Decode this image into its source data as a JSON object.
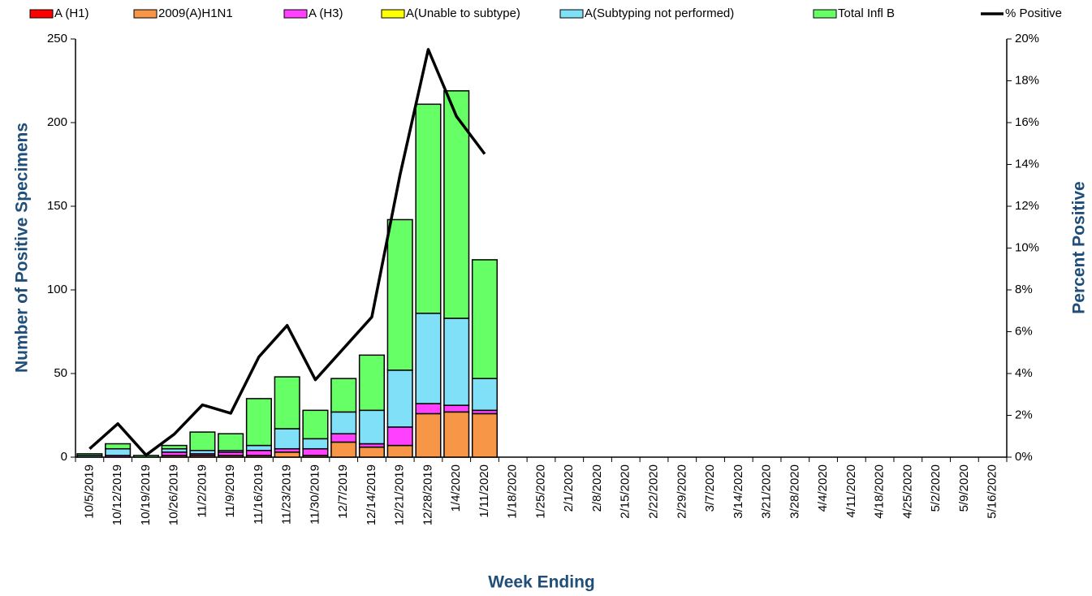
{
  "chart_data": {
    "type": "stacked-bar-line",
    "y_axis_label": "Number of  Positive Specimens",
    "y2_axis_label": "Percent Positive",
    "x_axis_label": "Week Ending",
    "categories": [
      "10/5/2019",
      "10/12/2019",
      "10/19/2019",
      "10/26/2019",
      "11/2/2019",
      "11/9/2019",
      "11/16/2019",
      "11/23/2019",
      "11/30/2019",
      "12/7/2019",
      "12/14/2019",
      "12/21/2019",
      "12/28/2019",
      "1/4/2020",
      "1/11/2020",
      "1/18/2020",
      "1/25/2020",
      "2/1/2020",
      "2/8/2020",
      "2/15/2020",
      "2/22/2020",
      "2/29/2020",
      "3/7/2020",
      "3/14/2020",
      "3/21/2020",
      "3/28/2020",
      "4/4/2020",
      "4/11/2020",
      "4/18/2020",
      "4/25/2020",
      "5/2/2020",
      "5/9/2020",
      "5/16/2020"
    ],
    "series": [
      {
        "name": "A (H1)",
        "color": "#ff0000",
        "values": [
          0,
          0,
          0,
          0,
          0,
          0,
          0,
          0,
          0,
          0,
          0,
          0,
          0,
          0,
          0,
          null,
          null,
          null,
          null,
          null,
          null,
          null,
          null,
          null,
          null,
          null,
          null,
          null,
          null,
          null,
          null,
          null,
          null
        ]
      },
      {
        "name": "2009(A)H1N1",
        "color": "#f79646",
        "values": [
          0,
          0,
          0,
          1,
          1,
          1,
          1,
          3,
          1,
          9,
          6,
          7,
          26,
          27,
          26,
          null,
          null,
          null,
          null,
          null,
          null,
          null,
          null,
          null,
          null,
          null,
          null,
          null,
          null,
          null,
          null,
          null,
          null
        ]
      },
      {
        "name": "A (H3)",
        "color": "#ff40ff",
        "values": [
          0,
          1,
          0,
          2,
          1,
          2,
          3,
          2,
          4,
          5,
          2,
          11,
          6,
          4,
          2,
          null,
          null,
          null,
          null,
          null,
          null,
          null,
          null,
          null,
          null,
          null,
          null,
          null,
          null,
          null,
          null,
          null,
          null
        ]
      },
      {
        "name": "A(Unable to subtype)",
        "color": "#ffff00",
        "values": [
          0,
          0,
          0,
          0,
          0,
          0,
          0,
          0,
          0,
          0,
          0,
          0,
          0,
          0,
          0,
          null,
          null,
          null,
          null,
          null,
          null,
          null,
          null,
          null,
          null,
          null,
          null,
          null,
          null,
          null,
          null,
          null,
          null
        ]
      },
      {
        "name": "A(Subtyping not performed)",
        "color": "#7fe0f8",
        "values": [
          1,
          4,
          0,
          2,
          2,
          1,
          3,
          12,
          6,
          13,
          20,
          34,
          54,
          52,
          19,
          null,
          null,
          null,
          null,
          null,
          null,
          null,
          null,
          null,
          null,
          null,
          null,
          null,
          null,
          null,
          null,
          null,
          null
        ]
      },
      {
        "name": "Total Infl B",
        "color": "#66ff66",
        "values": [
          1,
          3,
          1,
          2,
          11,
          10,
          28,
          31,
          17,
          20,
          33,
          90,
          125,
          136,
          71,
          null,
          null,
          null,
          null,
          null,
          null,
          null,
          null,
          null,
          null,
          null,
          null,
          null,
          null,
          null,
          null,
          null,
          null
        ]
      },
      {
        "name": "% Positive",
        "color": "#000000",
        "axis": "y2",
        "values": [
          0.4,
          1.6,
          0.1,
          1.1,
          2.5,
          2.1,
          4.8,
          6.3,
          3.7,
          5.2,
          6.7,
          13.5,
          19.5,
          16.3,
          14.5,
          null,
          null,
          null,
          null,
          null,
          null,
          null,
          null,
          null,
          null,
          null,
          null,
          null,
          null,
          null,
          null,
          null,
          null
        ]
      }
    ],
    "ylim": [
      0,
      250
    ],
    "yticks": [
      0,
      50,
      100,
      150,
      200,
      250
    ],
    "y2lim": [
      0,
      20
    ],
    "y2ticks": [
      {
        "value": 0,
        "label": "0%"
      },
      {
        "value": 2,
        "label": "2%"
      },
      {
        "value": 4,
        "label": "4%"
      },
      {
        "value": 6,
        "label": "6%"
      },
      {
        "value": 8,
        "label": "8%"
      },
      {
        "value": 10,
        "label": "10%"
      },
      {
        "value": 12,
        "label": "12%"
      },
      {
        "value": 14,
        "label": "14%"
      },
      {
        "value": 16,
        "label": "16%"
      },
      {
        "value": 18,
        "label": "18%"
      },
      {
        "value": 20,
        "label": "20%"
      }
    ],
    "legend": "top"
  }
}
